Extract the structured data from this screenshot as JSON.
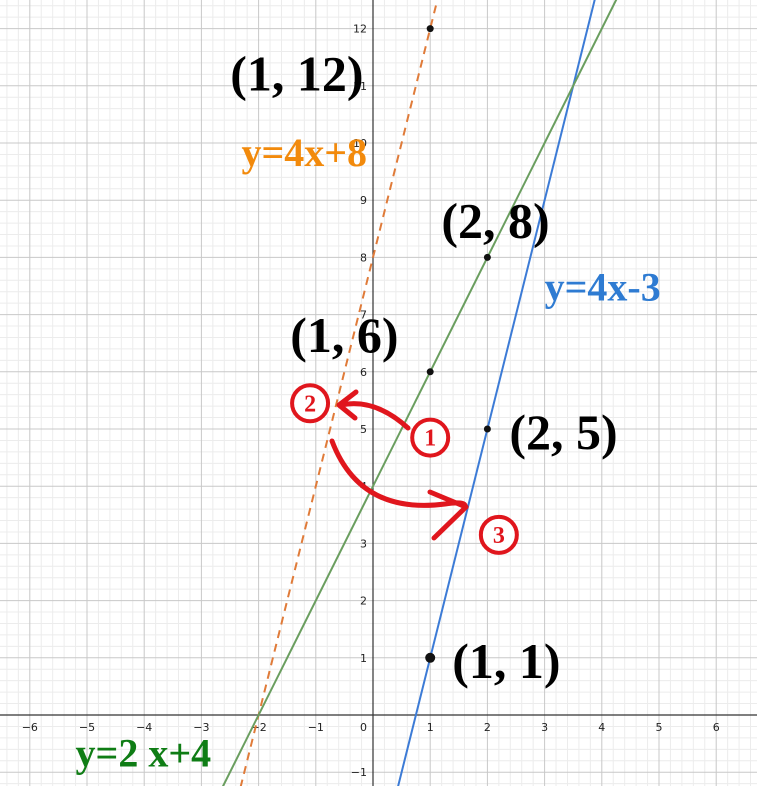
{
  "chart_data": {
    "type": "line",
    "title": "",
    "xlabel": "",
    "ylabel": "",
    "xlim": [
      -6.4,
      6.8
    ],
    "ylim": [
      -1.25,
      12.6
    ],
    "grid": true,
    "x_ticks": [
      -6,
      -5,
      -4,
      -3,
      -2,
      -1,
      1,
      2,
      3,
      4,
      5,
      6
    ],
    "y_ticks": [
      -1,
      1,
      2,
      3,
      4,
      5,
      6,
      7,
      8,
      9,
      10,
      11,
      12
    ],
    "origin_label": "0",
    "series": [
      {
        "name": "y=4x+8",
        "slope": 4,
        "intercept": 8,
        "color": "#e07b39",
        "style": "dashed"
      },
      {
        "name": "y=4x-3",
        "slope": 4,
        "intercept": -3,
        "color": "#3c7bd6",
        "style": "solid"
      },
      {
        "name": "y=2 x+4",
        "slope": 2,
        "intercept": 4,
        "color": "#6a9e5f",
        "style": "solid"
      }
    ],
    "points": [
      {
        "label": "(1, 12)",
        "x": 1,
        "y": 12
      },
      {
        "label": "(2, 8)",
        "x": 2,
        "y": 8
      },
      {
        "label": "(1, 6)",
        "x": 1,
        "y": 6
      },
      {
        "label": "(2, 5)",
        "x": 2,
        "y": 5
      },
      {
        "label": "(1, 1)",
        "x": 1,
        "y": 1
      }
    ],
    "annotations": [
      {
        "text": "y=4x+8",
        "x": -2.3,
        "y": 9.6,
        "color": "#f28a0c"
      },
      {
        "text": "y=4x-3",
        "x": 3.0,
        "y": 7.25,
        "color": "#2e7bd2"
      },
      {
        "text": "y=2 x+4",
        "x": -5.2,
        "y": -0.9,
        "color": "#0f7d15"
      }
    ],
    "steps": [
      {
        "label": "1",
        "x": 1.0,
        "y": 4.85
      },
      {
        "label": "2",
        "x": -1.1,
        "y": 5.45
      },
      {
        "label": "3",
        "x": 2.2,
        "y": 3.15
      }
    ]
  }
}
